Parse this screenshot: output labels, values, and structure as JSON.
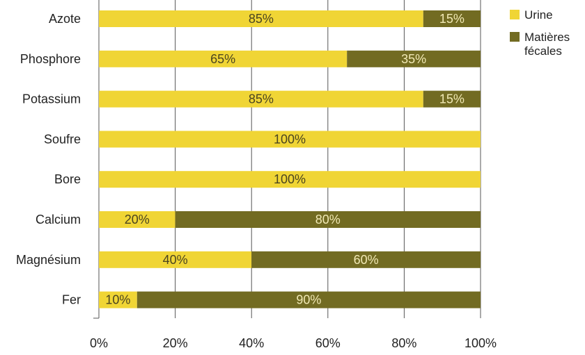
{
  "chart_data": {
    "type": "bar",
    "orientation": "horizontal",
    "stacked": true,
    "categories": [
      "Azote",
      "Phosphore",
      "Potassium",
      "Soufre",
      "Bore",
      "Calcium",
      "Magnésium",
      "Fer"
    ],
    "series": [
      {
        "name": "Urine",
        "color": "#f0d535",
        "values": [
          85,
          65,
          85,
          100,
          100,
          20,
          40,
          10
        ],
        "labels": [
          "85%",
          "65%",
          "85%",
          "100%",
          "100%",
          "20%",
          "40%",
          "10%"
        ]
      },
      {
        "name": "Matières fécales",
        "color": "#726b22",
        "values": [
          15,
          35,
          15,
          0,
          0,
          80,
          60,
          90
        ],
        "labels": [
          "15%",
          "35%",
          "15%",
          "",
          "",
          "80%",
          "60%",
          "90%"
        ]
      }
    ],
    "xlim": [
      0,
      100
    ],
    "x_ticks": [
      0,
      20,
      40,
      60,
      80,
      100
    ],
    "x_tick_labels": [
      "0%",
      "20%",
      "40%",
      "60%",
      "80%",
      "100%"
    ],
    "grid": "vertical",
    "legend_position": "top-right",
    "legend": [
      {
        "lines": [
          "Urine"
        ],
        "color": "#f0d535"
      },
      {
        "lines": [
          "Matières",
          "fécales"
        ],
        "color": "#726b22"
      }
    ]
  }
}
